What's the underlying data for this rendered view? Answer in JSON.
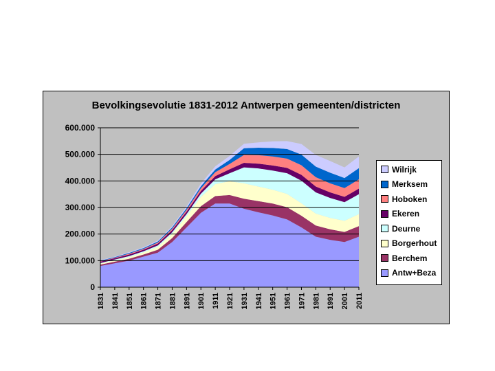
{
  "chart_data": {
    "type": "area",
    "stacked": true,
    "title": "Bevolkingsevolutie 1831-2012 Antwerpen gemeenten/districten",
    "xlabel": "",
    "ylabel": "",
    "ylim": [
      0,
      600000
    ],
    "yticks": [
      "0",
      "100.000",
      "200.000",
      "300.000",
      "400.000",
      "500.000",
      "600.000"
    ],
    "x": [
      1831,
      1841,
      1851,
      1861,
      1871,
      1881,
      1891,
      1901,
      1911,
      1921,
      1931,
      1941,
      1951,
      1961,
      1971,
      1981,
      1991,
      2001,
      2011
    ],
    "xtick_labels": [
      "1831",
      "1841",
      "1851",
      "1861",
      "1871",
      "1881",
      "1891",
      "1901",
      "1911",
      "1921",
      "1931",
      "1941",
      "1951",
      "1961",
      "1971",
      "1981",
      "1991",
      "2001",
      "2011"
    ],
    "grid": true,
    "legend": "right",
    "series": [
      {
        "name": "Antw+Beza",
        "color": "#9999ff",
        "values": [
          80000,
          90000,
          100000,
          115000,
          130000,
          170000,
          225000,
          280000,
          315000,
          315000,
          295000,
          282000,
          270000,
          255000,
          225000,
          190000,
          178000,
          170000,
          190000
        ]
      },
      {
        "name": "Berchem",
        "color": "#993366",
        "values": [
          5000,
          6000,
          7000,
          8000,
          11000,
          15000,
          20000,
          25000,
          28000,
          32000,
          38000,
          42000,
          45000,
          46000,
          44000,
          42000,
          40000,
          38000,
          40000
        ]
      },
      {
        "name": "Borgerhout",
        "color": "#ffffcc",
        "values": [
          4000,
          5000,
          6000,
          8000,
          11000,
          16000,
          22000,
          35000,
          45000,
          52000,
          58000,
          55000,
          52000,
          50000,
          47000,
          45000,
          43000,
          42000,
          45000
        ]
      },
      {
        "name": "Deurne",
        "color": "#ccffff",
        "values": [
          2000,
          3000,
          4000,
          4000,
          5000,
          6000,
          8000,
          12000,
          18000,
          30000,
          60000,
          68000,
          72000,
          78000,
          85000,
          80000,
          75000,
          70000,
          75000
        ]
      },
      {
        "name": "Ekeren",
        "color": "#660066",
        "values": [
          5000,
          5000,
          6000,
          6000,
          7000,
          8000,
          9000,
          10000,
          12000,
          15000,
          17000,
          18000,
          19000,
          20000,
          22000,
          22000,
          21000,
          20000,
          21000
        ]
      },
      {
        "name": "Hoboken",
        "color": "#ff8080",
        "values": [
          2000,
          2000,
          3000,
          3000,
          4000,
          5000,
          7000,
          10000,
          15000,
          20000,
          30000,
          32000,
          34000,
          35000,
          36000,
          35000,
          34000,
          33000,
          35000
        ]
      },
      {
        "name": "Merksem",
        "color": "#0066cc",
        "values": [
          2000,
          2000,
          3000,
          3000,
          4000,
          5000,
          6000,
          8000,
          10000,
          15000,
          25000,
          28000,
          32000,
          36000,
          40000,
          40000,
          40000,
          38000,
          42000
        ]
      },
      {
        "name": "Wilrijk",
        "color": "#ccccff",
        "values": [
          2000,
          2000,
          3000,
          3000,
          4000,
          5000,
          7000,
          10000,
          12000,
          15000,
          17000,
          20000,
          25000,
          30000,
          40000,
          44000,
          44000,
          40000,
          44000
        ]
      }
    ]
  }
}
